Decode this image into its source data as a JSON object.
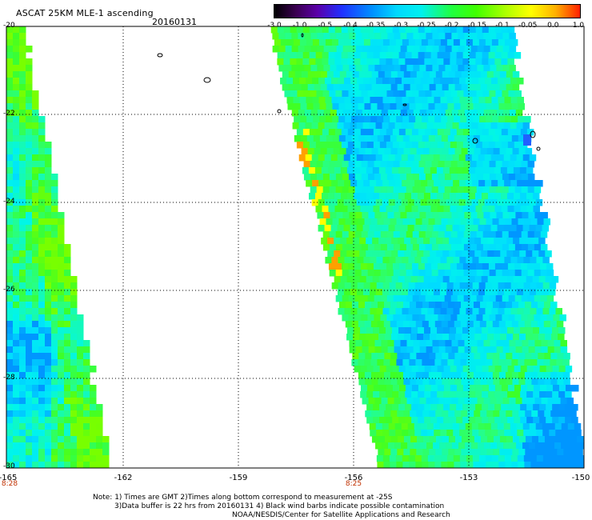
{
  "header": {
    "title": "ASCAT 25KM MLE-1 ascending",
    "date": "20160131"
  },
  "colorbar": {
    "labels": [
      "-3.0",
      "-1.0",
      "-0.5",
      "-0.4",
      "-0.35",
      "-0.3",
      "-0.25",
      "-0.2",
      "-0.15",
      "-0.1",
      "-0.05",
      "0.0",
      "1.0"
    ],
    "colors": [
      "#000000",
      "#5b00a8",
      "#2030ff",
      "#00d8ff",
      "#20ff40",
      "#ffff00",
      "#ff2000"
    ]
  },
  "map": {
    "lon_range": [
      -165,
      -150
    ],
    "lat_range": [
      -30,
      -20
    ],
    "grid": "dotted",
    "lat_labels": [
      "-20",
      "-22",
      "-24",
      "-26",
      "-28",
      "-30"
    ],
    "lon_labels": [
      "-165",
      "-162",
      "-159",
      "-156",
      "-153",
      "-150"
    ],
    "time_labels": [
      "8:28",
      "8:25"
    ],
    "swaths": [
      {
        "name": "west",
        "dominant_values": "-0.25 to -0.15"
      },
      {
        "name": "east",
        "dominant_values": "-0.3 to -0.15"
      }
    ]
  },
  "notes": {
    "line1": "Note: 1) Times are GMT 2)Times along bottom correspond to measurement at -25S",
    "line2": "3)Data buffer is 22 hrs from 20160131 4) Black wind barbs indicate possible contamination",
    "line3": "NOAA/NESDIS/Center for Satellite Applications and Research"
  }
}
